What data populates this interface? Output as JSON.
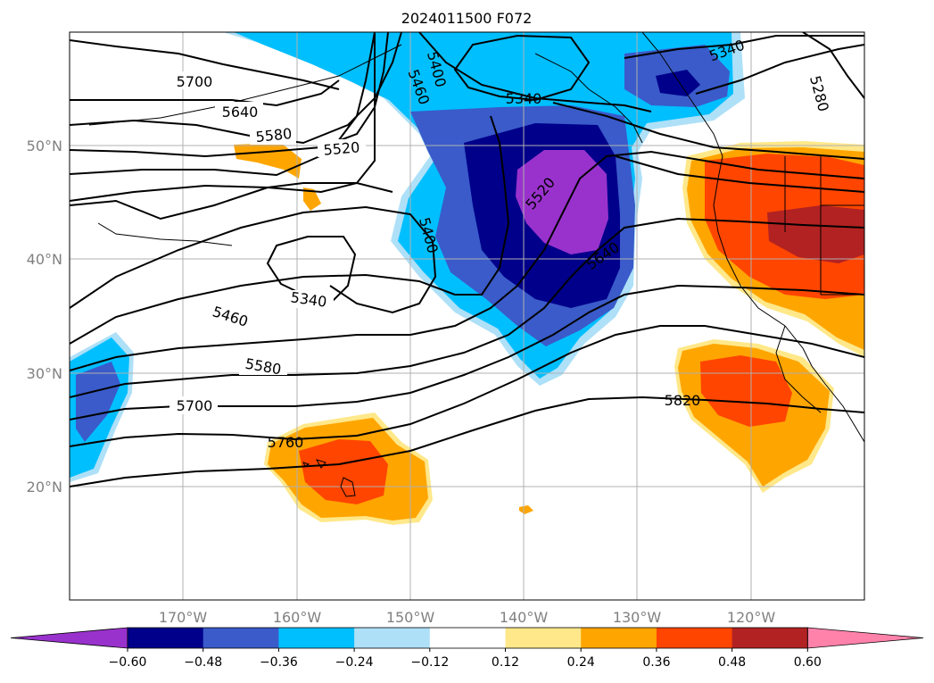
{
  "title": "2024011500 F072",
  "lat_labels": [
    "50°N",
    "40°N",
    "30°N",
    "20°N"
  ],
  "lon_labels": [
    "170°W",
    "160°W",
    "150°W",
    "140°W",
    "130°W",
    "120°W"
  ],
  "colorbar": {
    "ticks": [
      "−0.60",
      "−0.48",
      "−0.36",
      "−0.24",
      "−0.12",
      "0.12",
      "0.24",
      "0.36",
      "0.48",
      "0.60"
    ],
    "colors": [
      "#9932cc",
      "#00008b",
      "#3a5bc9",
      "#00bfff",
      "#aee0f8",
      "#ffffff",
      "#ffe88a",
      "#ffa500",
      "#ff4500",
      "#b22222",
      "#ff82ab"
    ]
  },
  "contour_labels": [
    {
      "text": "5700"
    },
    {
      "text": "5640"
    },
    {
      "text": "5580"
    },
    {
      "text": "5520"
    },
    {
      "text": "5460"
    },
    {
      "text": "5400"
    },
    {
      "text": "5340"
    },
    {
      "text": "5340"
    },
    {
      "text": "5280"
    },
    {
      "text": "5520"
    },
    {
      "text": "5400"
    },
    {
      "text": "5640"
    },
    {
      "text": "5340"
    },
    {
      "text": "5460"
    },
    {
      "text": "5580"
    },
    {
      "text": "5700"
    },
    {
      "text": "5760"
    },
    {
      "text": "5820"
    }
  ]
}
